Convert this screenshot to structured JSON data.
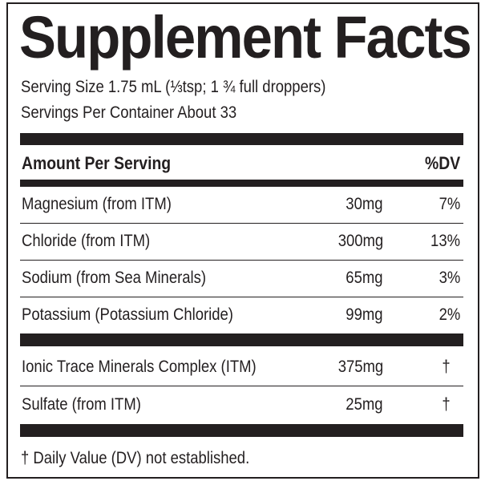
{
  "title": "Supplement Facts",
  "serving_size": "Serving Size 1.75 mL (⅓tsp; 1 ¾ full droppers)",
  "servings_per_container": "Servings Per Container About 33",
  "header": {
    "amount": "Amount Per Serving",
    "dv": "%DV"
  },
  "group1": [
    {
      "name": "Magnesium (from ITM)",
      "amount": "30mg",
      "dv": "7%"
    },
    {
      "name": "Chloride (from ITM)",
      "amount": "300mg",
      "dv": "13%"
    },
    {
      "name": "Sodium (from Sea Minerals)",
      "amount": "65mg",
      "dv": "3%"
    },
    {
      "name": "Potassium (Potassium Chloride)",
      "amount": "99mg",
      "dv": "2%"
    }
  ],
  "group2": [
    {
      "name": "Ionic Trace Minerals Complex (ITM)",
      "amount": "375mg",
      "dv": "†"
    },
    {
      "name": "Sulfate (from ITM)",
      "amount": "25mg",
      "dv": "†"
    }
  ],
  "footnote": "† Daily Value (DV) not established."
}
